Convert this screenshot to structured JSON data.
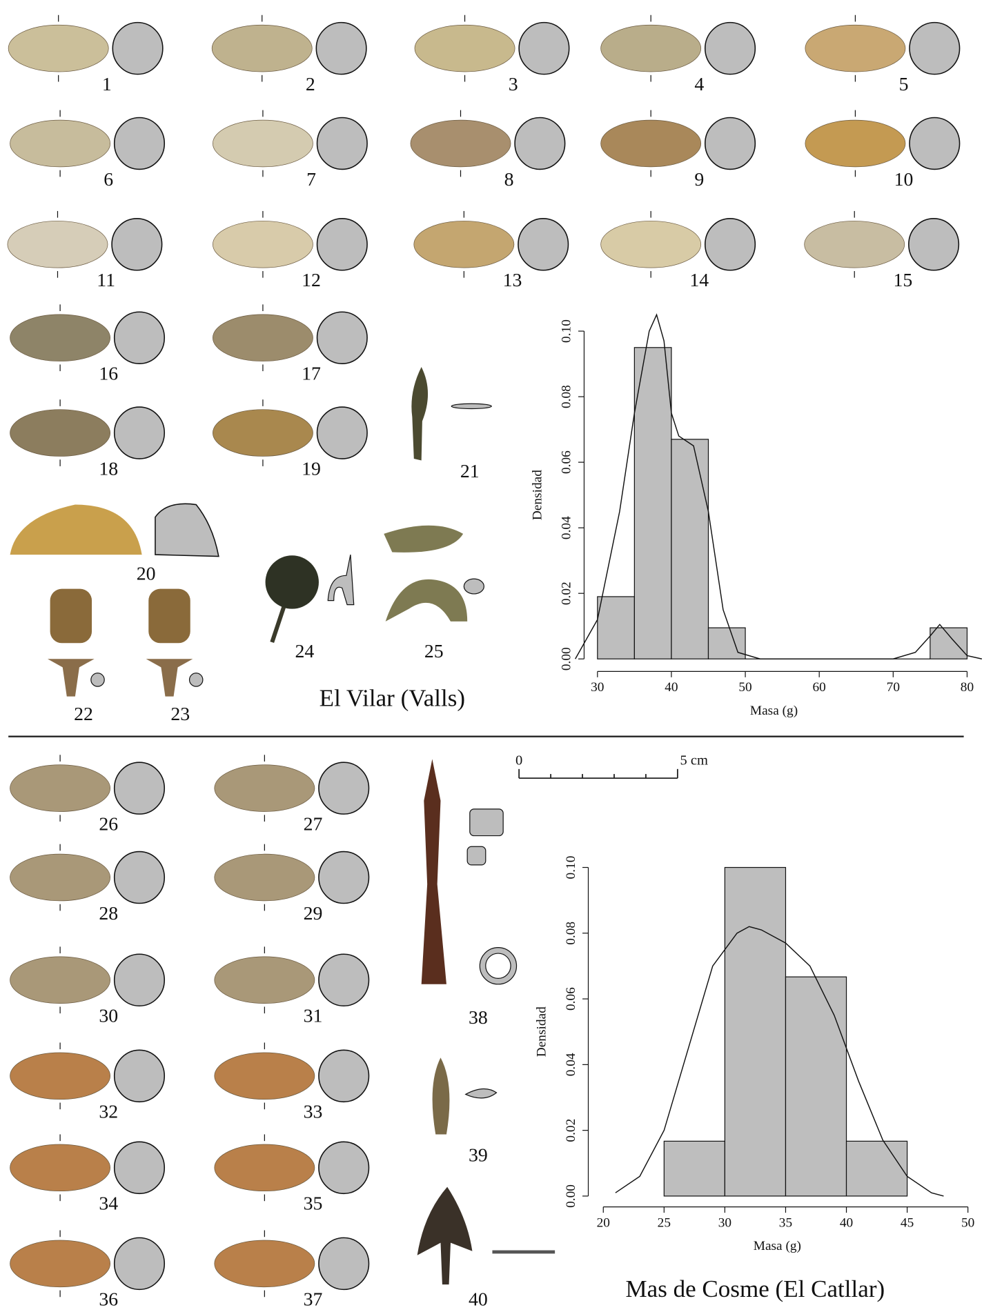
{
  "chart_data": [
    {
      "type": "histogram",
      "xlabel": "Masa (g)",
      "ylabel": "Densidad",
      "color": "#bebebe",
      "bins": [
        30,
        35,
        40,
        45,
        50,
        55,
        60,
        65,
        70,
        75,
        80
      ],
      "values": [
        0.019,
        0.095,
        0.067,
        0.0095,
        0,
        0,
        0,
        0,
        0,
        0.0095
      ],
      "density_curve": {
        "x": [
          27,
          30,
          33,
          35,
          37,
          38,
          39,
          40,
          41,
          43,
          45,
          47,
          49,
          52,
          70,
          73,
          75,
          76.3,
          78,
          80,
          82
        ],
        "y": [
          0,
          0.012,
          0.045,
          0.075,
          0.1,
          0.105,
          0.097,
          0.075,
          0.068,
          0.065,
          0.045,
          0.015,
          0.002,
          0,
          0,
          0.002,
          0.007,
          0.0105,
          0.006,
          0.001,
          0
        ]
      },
      "xlim": [
        30,
        80
      ],
      "xticks": [
        30,
        40,
        50,
        60,
        70,
        80
      ],
      "ylim": [
        0,
        0.1
      ],
      "yticks": [
        {
          "value": 0,
          "label": "0.00"
        },
        {
          "value": 0.02,
          "label": "0.02"
        },
        {
          "value": 0.04,
          "label": "0.04"
        },
        {
          "value": 0.06,
          "label": "0.06"
        },
        {
          "value": 0.08,
          "label": "0.08"
        },
        {
          "value": 0.1,
          "label": "0.10"
        }
      ]
    },
    {
      "type": "histogram",
      "xlabel": "Masa (g)",
      "ylabel": "Densidad",
      "color": "#bebebe",
      "bins": [
        25,
        30,
        35,
        40,
        45
      ],
      "values": [
        0.0167,
        0.1,
        0.0667,
        0.0167
      ],
      "density_curve": {
        "x": [
          21,
          23,
          25,
          27,
          29,
          31,
          32,
          33,
          35,
          37,
          39,
          41,
          43,
          45,
          47,
          48
        ],
        "y": [
          0.001,
          0.006,
          0.02,
          0.045,
          0.07,
          0.08,
          0.082,
          0.081,
          0.077,
          0.07,
          0.055,
          0.035,
          0.017,
          0.006,
          0.001,
          0
        ]
      },
      "xlim": [
        20,
        50
      ],
      "xticks": [
        20,
        25,
        30,
        35,
        40,
        45,
        50
      ],
      "ylim": [
        0,
        0.1
      ],
      "yticks": [
        {
          "value": 0,
          "label": "0.00"
        },
        {
          "value": 0.02,
          "label": "0.02"
        },
        {
          "value": 0.04,
          "label": "0.04"
        },
        {
          "value": 0.06,
          "label": "0.06"
        },
        {
          "value": 0.08,
          "label": "0.08"
        },
        {
          "value": 0.1,
          "label": "0.10"
        }
      ]
    }
  ],
  "item_labels": [
    "1",
    "2",
    "3",
    "4",
    "5",
    "6",
    "7",
    "8",
    "9",
    "10",
    "11",
    "12",
    "13",
    "14",
    "15",
    "16",
    "17",
    "18",
    "19",
    "20",
    "21",
    "22",
    "23",
    "24",
    "25",
    "26",
    "27",
    "28",
    "29",
    "30",
    "31",
    "32",
    "33",
    "34",
    "35",
    "36",
    "37",
    "38",
    "39",
    "40"
  ],
  "sites": [
    "El Vilar (Valls)",
    "Mas de Cosme (El Catllar)"
  ],
  "scale_bar": {
    "start": "0",
    "end": "5 cm"
  }
}
